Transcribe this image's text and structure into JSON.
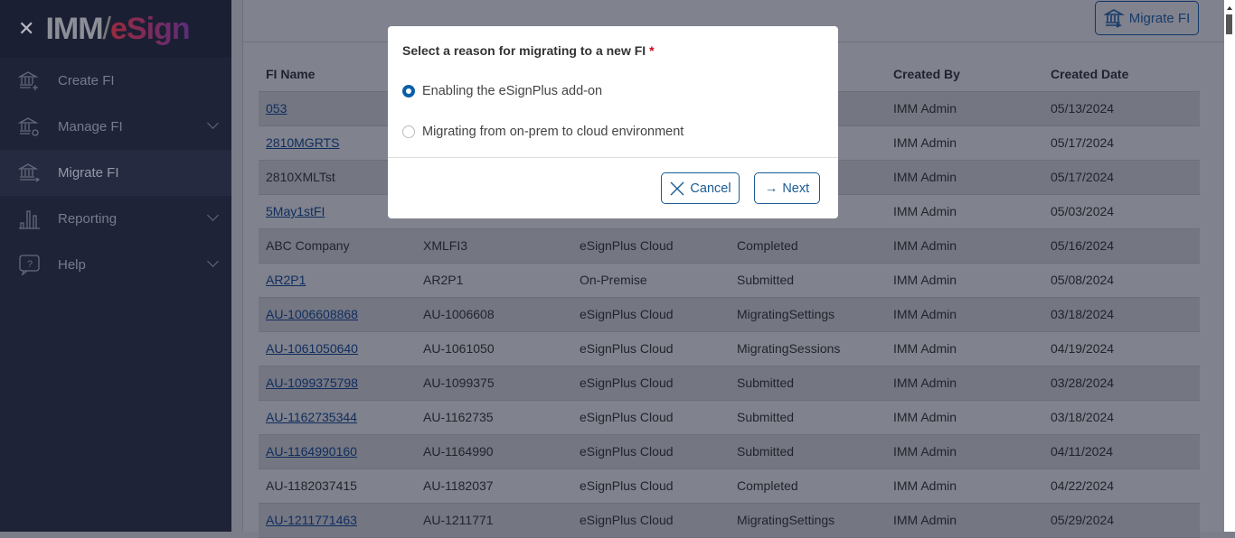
{
  "sidebar": {
    "logo": {
      "part1": "IMM",
      "part2": "eSign"
    },
    "items": [
      {
        "label": "Create FI",
        "icon": "bank-plus-icon"
      },
      {
        "label": "Manage FI",
        "icon": "bank-gear-icon"
      },
      {
        "label": "Migrate FI",
        "icon": "bank-arrow-icon",
        "active": true
      },
      {
        "label": "Reporting",
        "icon": "bar-chart-icon"
      },
      {
        "label": "Help",
        "icon": "help-icon"
      }
    ]
  },
  "toolbar": {
    "migrate_label": "Migrate FI"
  },
  "table": {
    "headers": [
      "FI Name",
      "",
      "",
      "",
      "Created By",
      "Created Date"
    ],
    "rows": [
      {
        "name": "053",
        "link": true,
        "c2": "",
        "c3": "",
        "c4": "",
        "by": "IMM Admin",
        "date": "05/13/2024"
      },
      {
        "name": "2810MGRTS",
        "link": true,
        "c2": "",
        "c3": "",
        "c4": "",
        "by": "IMM Admin",
        "date": "05/17/2024"
      },
      {
        "name": "2810XMLTst",
        "link": false,
        "c2": "",
        "c3": "",
        "c4": "",
        "by": "IMM Admin",
        "date": "05/17/2024"
      },
      {
        "name": "5May1stFI",
        "link": true,
        "c2": "",
        "c3": "",
        "c4": "",
        "by": "IMM Admin",
        "date": "05/03/2024"
      },
      {
        "name": "ABC Company",
        "link": false,
        "c2": "XMLFI3",
        "c3": "eSignPlus Cloud",
        "c4": "Completed",
        "by": "IMM Admin",
        "date": "05/16/2024"
      },
      {
        "name": "AR2P1",
        "link": true,
        "c2": "AR2P1",
        "c3": "On-Premise",
        "c4": "Submitted",
        "by": "IMM Admin",
        "date": "05/08/2024"
      },
      {
        "name": "AU-1006608868",
        "link": true,
        "c2": "AU-1006608",
        "c3": "eSignPlus Cloud",
        "c4": "MigratingSettings",
        "by": "IMM Admin",
        "date": "03/18/2024"
      },
      {
        "name": "AU-1061050640",
        "link": true,
        "c2": "AU-1061050",
        "c3": "eSignPlus Cloud",
        "c4": "MigratingSessions",
        "by": "IMM Admin",
        "date": "04/19/2024"
      },
      {
        "name": "AU-1099375798",
        "link": true,
        "c2": "AU-1099375",
        "c3": "eSignPlus Cloud",
        "c4": "Submitted",
        "by": "IMM Admin",
        "date": "03/28/2024"
      },
      {
        "name": "AU-1162735344",
        "link": true,
        "c2": "AU-1162735",
        "c3": "eSignPlus Cloud",
        "c4": "Submitted",
        "by": "IMM Admin",
        "date": "03/18/2024"
      },
      {
        "name": "AU-1164990160",
        "link": true,
        "c2": "AU-1164990",
        "c3": "eSignPlus Cloud",
        "c4": "Submitted",
        "by": "IMM Admin",
        "date": "04/11/2024"
      },
      {
        "name": "AU-1182037415",
        "link": false,
        "c2": "AU-1182037",
        "c3": "eSignPlus Cloud",
        "c4": "Completed",
        "by": "IMM Admin",
        "date": "04/22/2024"
      },
      {
        "name": "AU-1211771463",
        "link": true,
        "c2": "AU-1211771",
        "c3": "eSignPlus Cloud",
        "c4": "MigratingSettings",
        "by": "IMM Admin",
        "date": "05/29/2024"
      }
    ]
  },
  "modal": {
    "title": "Select a reason for migrating to a new FI",
    "required": "*",
    "options": [
      {
        "label": "Enabling the eSignPlus add-on",
        "selected": true
      },
      {
        "label": "Migrating from on-prem to cloud environment",
        "selected": false
      }
    ],
    "cancel_label": "Cancel",
    "next_label": "Next"
  },
  "colors": {
    "accent": "#0a5fa8",
    "sidebar": "#1f2338",
    "required": "#d0021b"
  }
}
